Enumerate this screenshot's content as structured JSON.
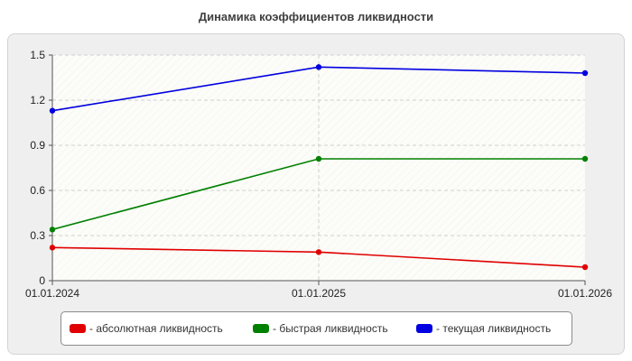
{
  "chart_data": {
    "type": "line",
    "title": "Динамика коэффициентов ликвидности",
    "xlabel": "",
    "ylabel": "",
    "categories": [
      "01.01.2024",
      "01.01.2025",
      "01.01.2026"
    ],
    "ylim": [
      0,
      1.5
    ],
    "yticks": [
      "0",
      "0.3",
      "0.6",
      "0.9",
      "1.2",
      "1.5"
    ],
    "grid": true,
    "legend_position": "bottom",
    "series": [
      {
        "name": "- абсолютная ликвидность",
        "color": "#e00000",
        "values": [
          0.22,
          0.19,
          0.09
        ]
      },
      {
        "name": "- быстрая ликвидность",
        "color": "#008000",
        "values": [
          0.34,
          0.81,
          0.81
        ]
      },
      {
        "name": "- текущая ликвидность",
        "color": "#0000e0",
        "values": [
          1.13,
          1.42,
          1.38
        ]
      }
    ]
  }
}
